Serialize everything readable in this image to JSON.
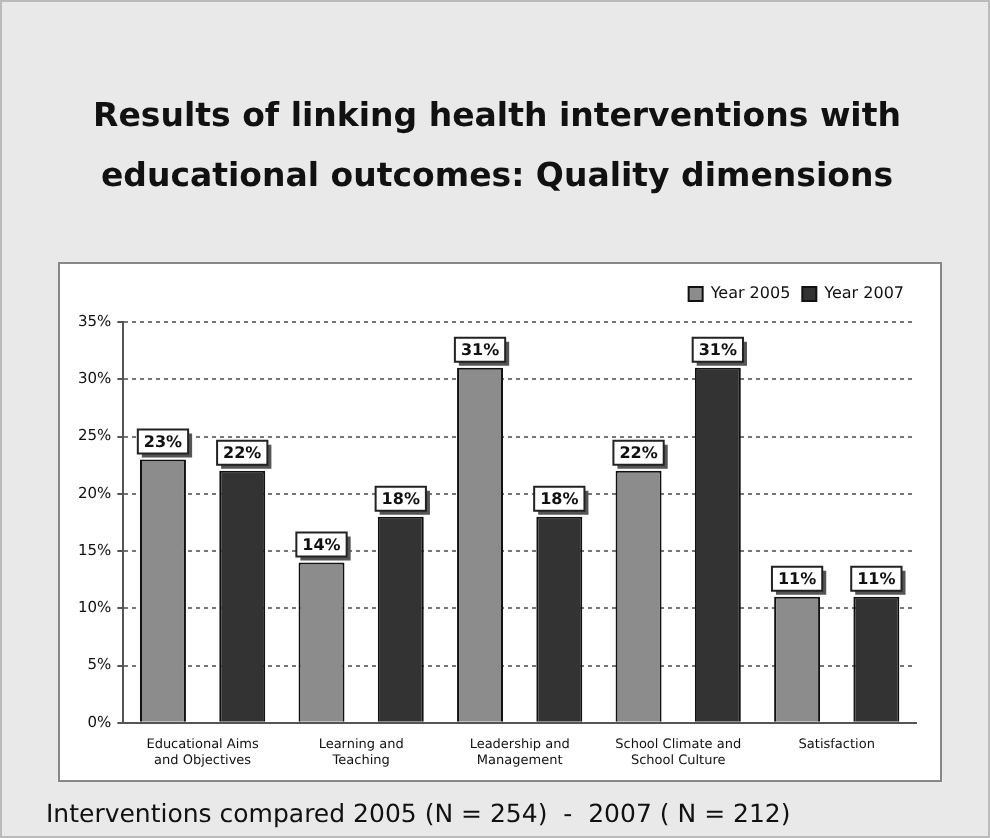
{
  "chart_data": {
    "type": "bar",
    "title": "Results of linking health interventions with educational outcomes: Quality dimensions",
    "categories": [
      "Educational Aims and Objectives",
      "Learning and Teaching",
      "Leadership and Management",
      "School Climate and School Culture",
      "Satisfaction"
    ],
    "series": [
      {
        "name": "Year 2005",
        "color": "#8c8c8c",
        "values": [
          23,
          14,
          31,
          22,
          11
        ],
        "value_labels": [
          "23%",
          "14%",
          "31%",
          "22%",
          "11%"
        ]
      },
      {
        "name": "Year 2007",
        "color": "#333333",
        "values": [
          22,
          18,
          18,
          31,
          11
        ],
        "value_labels": [
          "22%",
          "18%",
          "18%",
          "31%",
          "11%"
        ]
      }
    ],
    "ylim": [
      0,
      35
    ],
    "yticks": [
      {
        "value": 0,
        "label": "0%"
      },
      {
        "value": 5,
        "label": "5%"
      },
      {
        "value": 10,
        "label": "10%"
      },
      {
        "value": 15,
        "label": "15%"
      },
      {
        "value": 20,
        "label": "20%"
      },
      {
        "value": 25,
        "label": "25%"
      },
      {
        "value": 30,
        "label": "30%"
      },
      {
        "value": 35,
        "label": "35%"
      }
    ],
    "grid": "y",
    "legend": "top right",
    "annotations": [
      "Interventions compared 2005 (N = 254)  -  2007 ( N = 212)"
    ]
  }
}
